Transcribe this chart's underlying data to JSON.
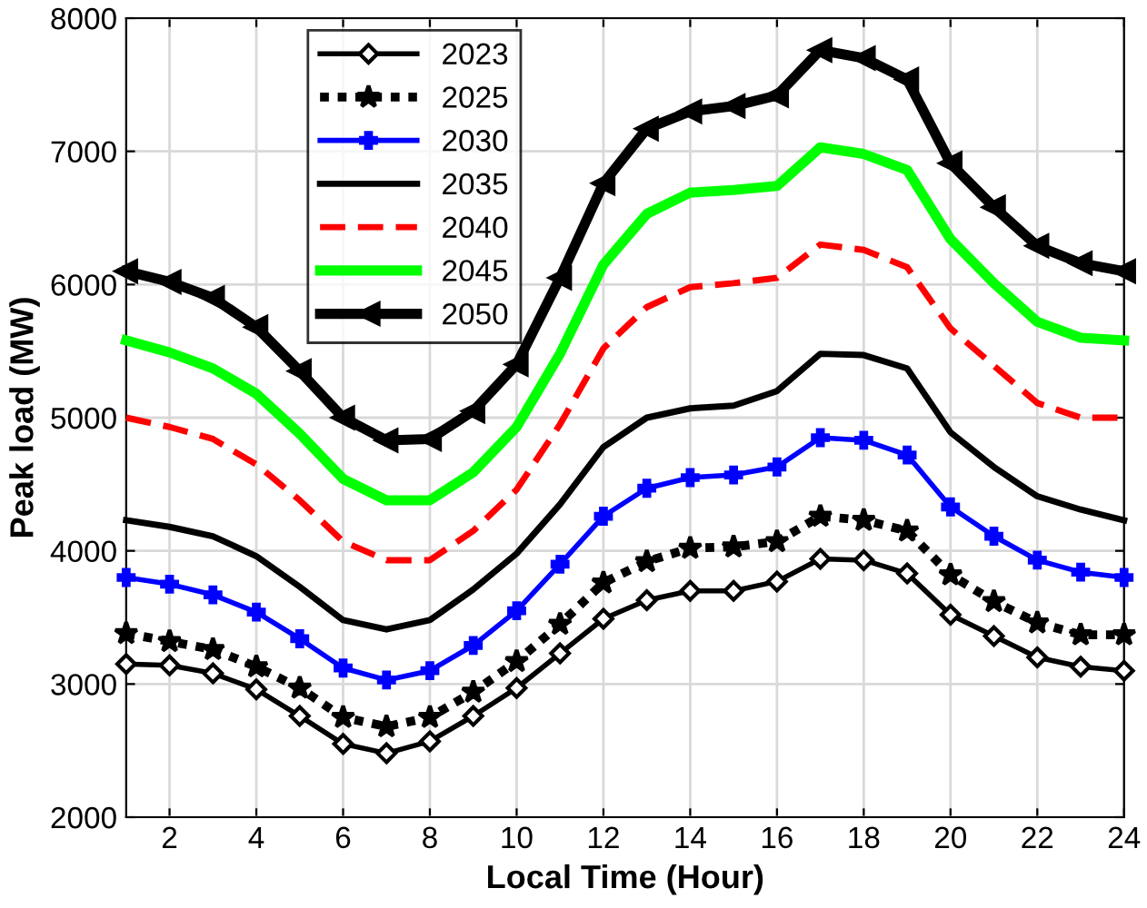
{
  "chart_data": {
    "type": "line",
    "xlabel": "Local Time (Hour)",
    "ylabel": "Peak load (MW)",
    "x": [
      1,
      2,
      3,
      4,
      5,
      6,
      7,
      8,
      9,
      10,
      11,
      12,
      13,
      14,
      15,
      16,
      17,
      18,
      19,
      20,
      21,
      22,
      23,
      24
    ],
    "xlim": [
      1,
      24
    ],
    "xticks": [
      2,
      4,
      6,
      8,
      10,
      12,
      14,
      16,
      18,
      20,
      22,
      24
    ],
    "ylim": [
      2000,
      8000
    ],
    "yticks": [
      2000,
      3000,
      4000,
      5000,
      6000,
      7000,
      8000
    ],
    "grid": true,
    "legend": "top left",
    "series": [
      {
        "name": "2023",
        "color": "#000000",
        "marker": "diamond",
        "line_style": "solid",
        "values": [
          3150,
          3140,
          3080,
          2960,
          2760,
          2550,
          2480,
          2570,
          2760,
          2970,
          3230,
          3490,
          3630,
          3700,
          3700,
          3770,
          3940,
          3930,
          3830,
          3520,
          3360,
          3200,
          3130,
          3100
        ]
      },
      {
        "name": "2025",
        "color": "#000000",
        "marker": "star",
        "line_style": "dotted",
        "values": [
          3380,
          3320,
          3260,
          3130,
          2970,
          2750,
          2680,
          2750,
          2940,
          3170,
          3450,
          3760,
          3920,
          4020,
          4030,
          4070,
          4260,
          4230,
          4150,
          3820,
          3620,
          3460,
          3370,
          3370
        ]
      },
      {
        "name": "2030",
        "color": "#0000ff",
        "marker": "cross",
        "line_style": "solid",
        "values": [
          3800,
          3750,
          3670,
          3540,
          3340,
          3120,
          3030,
          3100,
          3290,
          3550,
          3900,
          4260,
          4470,
          4550,
          4570,
          4630,
          4850,
          4830,
          4720,
          4330,
          4110,
          3930,
          3840,
          3800
        ]
      },
      {
        "name": "2035",
        "color": "#000000",
        "marker": "none",
        "line_style": "solid",
        "values": [
          4230,
          4180,
          4110,
          3960,
          3730,
          3480,
          3410,
          3480,
          3710,
          3980,
          4350,
          4780,
          5000,
          5070,
          5090,
          5200,
          5480,
          5470,
          5370,
          4890,
          4630,
          4410,
          4310,
          4230
        ]
      },
      {
        "name": "2040",
        "color": "#ff0000",
        "marker": "none",
        "line_style": "dashed",
        "values": [
          5000,
          4930,
          4840,
          4650,
          4380,
          4070,
          3930,
          3930,
          4150,
          4460,
          4950,
          5520,
          5830,
          5980,
          6010,
          6050,
          6300,
          6260,
          6130,
          5670,
          5390,
          5110,
          5000,
          5000
        ]
      },
      {
        "name": "2045",
        "color": "#00ff00",
        "marker": "none",
        "line_style": "solid",
        "values": [
          5580,
          5490,
          5370,
          5180,
          4880,
          4540,
          4380,
          4380,
          4590,
          4930,
          5480,
          6150,
          6530,
          6690,
          6710,
          6740,
          7030,
          6980,
          6860,
          6340,
          6010,
          5720,
          5600,
          5580
        ]
      },
      {
        "name": "2050",
        "color": "#000000",
        "marker": "triangle",
        "line_style": "solid",
        "values": [
          6100,
          6020,
          5900,
          5680,
          5350,
          5000,
          4830,
          4840,
          5050,
          5400,
          6050,
          6760,
          7170,
          7300,
          7340,
          7420,
          7760,
          7700,
          7540,
          6910,
          6580,
          6290,
          6160,
          6100
        ]
      }
    ]
  }
}
